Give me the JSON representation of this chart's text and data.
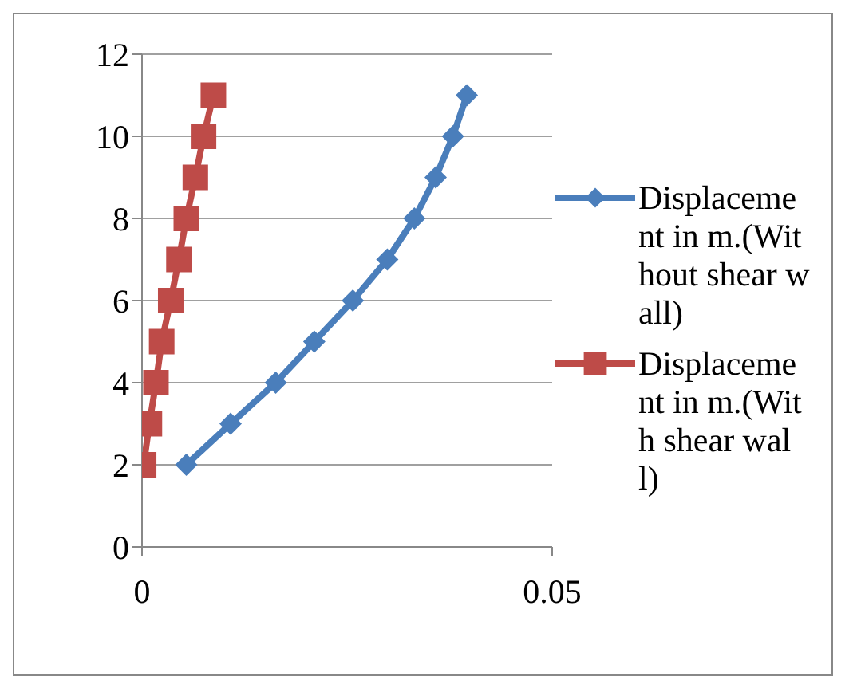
{
  "chart_data": {
    "type": "line",
    "xlim": [
      0,
      0.05
    ],
    "xticks": [
      0,
      0.05
    ],
    "ylim": [
      0,
      12
    ],
    "yticks": [
      0,
      2,
      4,
      6,
      8,
      10,
      12
    ],
    "grid": "y",
    "legend": "right",
    "line_style": "solid",
    "series": [
      {
        "name": "Displacement in m.(Without shear wall)",
        "color": "#4a7ebb",
        "marker": "diamond",
        "x": [
          0.0054,
          0.0108,
          0.0163,
          0.021,
          0.0257,
          0.0299,
          0.0332,
          0.0358,
          0.0379,
          0.0396
        ],
        "values": [
          2,
          3,
          4,
          5,
          6,
          7,
          8,
          9,
          10,
          11
        ]
      },
      {
        "name": "Displacement in m.(With shear wall)",
        "color": "#be4b48",
        "marker": "square",
        "x": [
          0.0002,
          0.0009,
          0.0017,
          0.0024,
          0.0035,
          0.0045,
          0.0054,
          0.0065,
          0.0075,
          0.0087
        ],
        "values": [
          2,
          3,
          4,
          5,
          6,
          7,
          8,
          9,
          10,
          11
        ]
      }
    ]
  }
}
